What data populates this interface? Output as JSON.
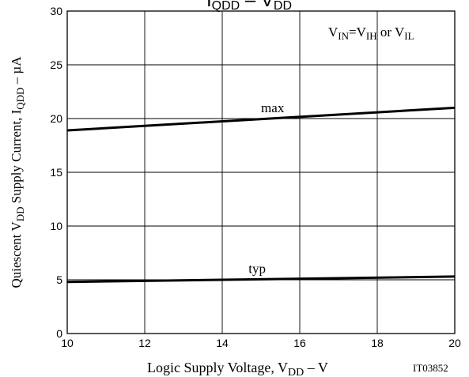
{
  "chart_data": {
    "type": "line",
    "title": "IQDD – VDD",
    "xlabel": "Logic Supply Voltage, VDD – V",
    "ylabel": "Quiescent VDD Supply Current, IQDD – µA",
    "x_ticks": [
      "10",
      "12",
      "14",
      "16",
      "18",
      "20"
    ],
    "y_ticks": [
      "0",
      "5",
      "10",
      "15",
      "20",
      "25",
      "30"
    ],
    "xlim": [
      10,
      20
    ],
    "ylim": [
      0,
      30
    ],
    "grid": true,
    "series": [
      {
        "name": "max",
        "x": [
          10,
          20
        ],
        "y": [
          18.9,
          21.0
        ]
      },
      {
        "name": "typ",
        "x": [
          10,
          20
        ],
        "y": [
          4.8,
          5.3
        ]
      }
    ],
    "annotation": "VIN=VIH or VIL",
    "code": "IT03852"
  }
}
